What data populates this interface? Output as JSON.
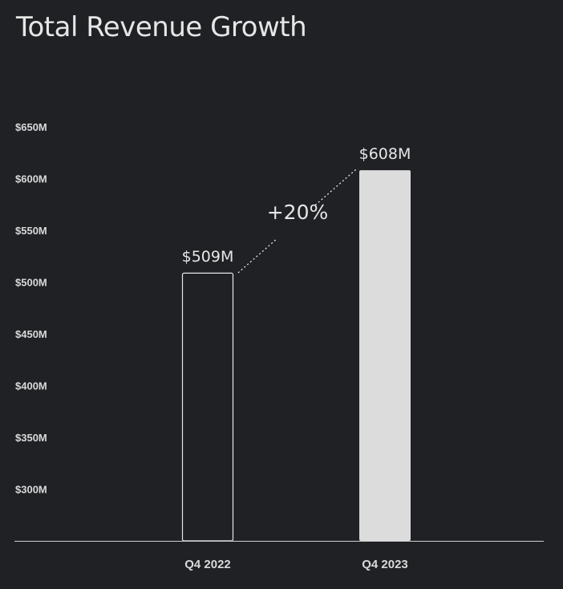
{
  "chart_data": {
    "type": "bar",
    "title": "Total Revenue Growth",
    "categories": [
      "Q4 2022",
      "Q4 2023"
    ],
    "values": [
      509,
      608
    ],
    "value_labels": [
      "$509M",
      "$608M"
    ],
    "y_ticks": [
      300,
      350,
      400,
      450,
      500,
      550,
      600,
      650
    ],
    "y_tick_labels": [
      "$300M",
      "$350M",
      "$400M",
      "$450M",
      "$500M",
      "$550M",
      "$600M",
      "$650M"
    ],
    "ylim": [
      250,
      653
    ],
    "grid": false,
    "legend": "none",
    "annotation": "+20%",
    "bar_styles": [
      "outline",
      "filled"
    ],
    "colors": {
      "background": "#1f2124",
      "bar_fill": "#dcdcdc",
      "bar_outline": "#e6e6e6",
      "text": "#e6e6e6",
      "axis": "#d0d0d0"
    }
  }
}
